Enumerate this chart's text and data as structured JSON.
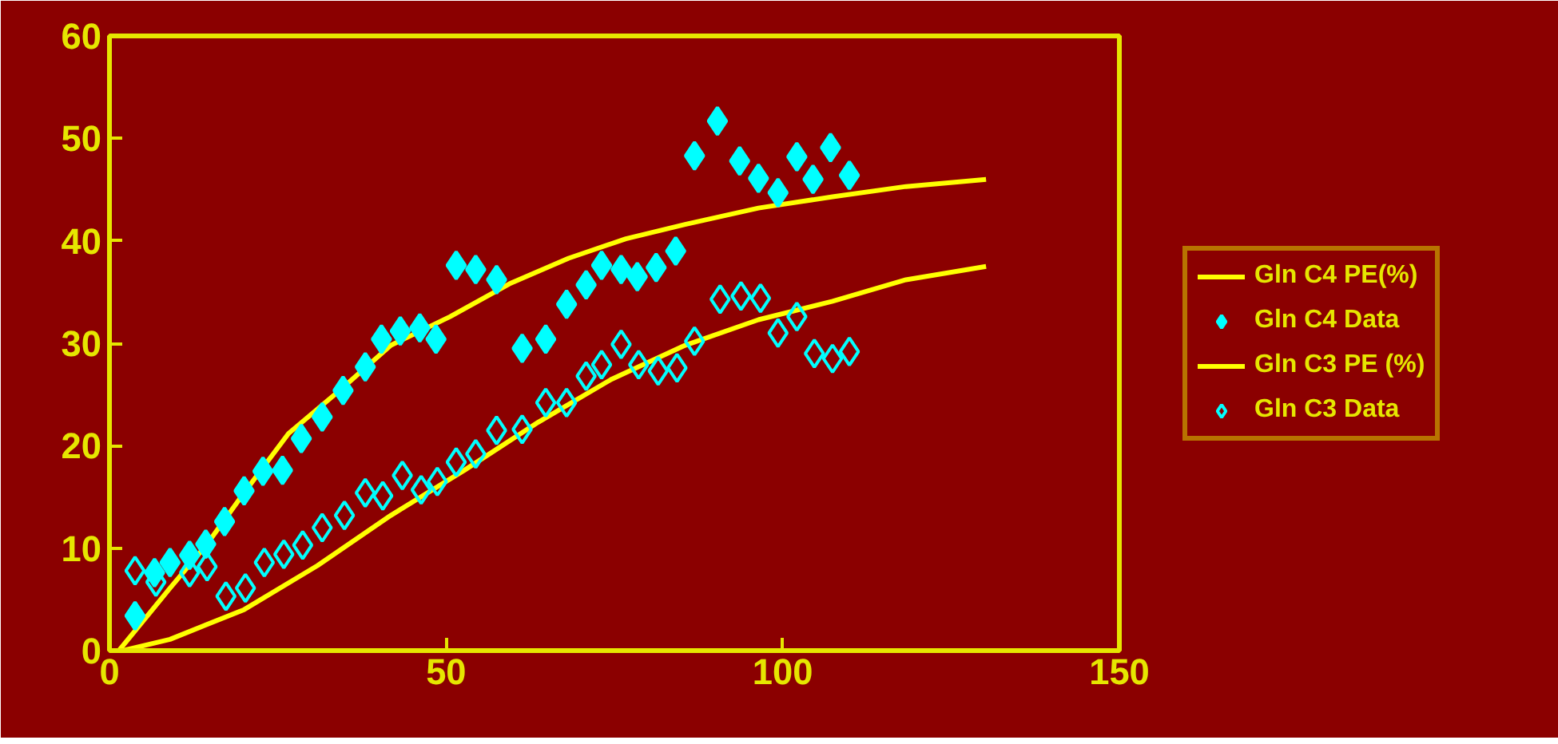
{
  "chart_data": {
    "type": "scatter",
    "xlim": [
      0,
      150
    ],
    "ylim": [
      0,
      60
    ],
    "xticks": [
      0,
      50,
      100,
      150
    ],
    "yticks": [
      0,
      10,
      20,
      30,
      40,
      50,
      60
    ],
    "grid": false,
    "legend": "right",
    "series": [
      {
        "name": "Gln C4 PE(%)",
        "type": "line",
        "color": "#ffff00",
        "marker": "none",
        "line_style": "solid",
        "x": [
          1.4,
          9,
          14.5,
          20,
          26.6,
          34.2,
          41.8,
          50.6,
          59.4,
          68.2,
          76.7,
          85.5,
          96.4,
          107.4,
          118.3,
          130.2
        ],
        "values": [
          0,
          6.1,
          10.4,
          15.4,
          21.2,
          25.4,
          29.8,
          32.6,
          35.8,
          38.3,
          40.2,
          41.6,
          43.2,
          44.3,
          45.3,
          46
        ]
      },
      {
        "name": "Gln C4 Data",
        "color": "#00ffff",
        "marker": "diamond",
        "x": [
          3.8,
          6.7,
          9,
          11.9,
          14.3,
          17.1,
          20,
          22.8,
          25.7,
          28.5,
          31.6,
          34.7,
          38,
          40.4,
          43.2,
          46.1,
          48.5,
          51.5,
          54.4,
          57.5,
          61.3,
          64.8,
          67.9,
          70.8,
          73.1,
          76,
          78.4,
          81.2,
          84.1,
          86.9,
          90.3,
          93.6,
          96.4,
          99.3,
          102.1,
          104.5,
          107.1,
          109.9
        ],
        "values": [
          3.4,
          7.6,
          8.6,
          9.3,
          10.4,
          12.6,
          15.6,
          17.5,
          17.6,
          20.7,
          22.8,
          25.4,
          27.7,
          30.4,
          31.2,
          31.5,
          30.4,
          37.6,
          37.2,
          36.2,
          29.5,
          30.4,
          33.8,
          35.7,
          37.6,
          37.2,
          36.5,
          37.4,
          39,
          48.3,
          51.7,
          47.8,
          46.1,
          44.7,
          48.2,
          46,
          49.1,
          46.4
        ]
      },
      {
        "name": "Gln C3 PE (%)",
        "type": "line",
        "color": "#ffff00",
        "marker": "none",
        "line_style": "solid",
        "x": [
          2,
          9,
          20,
          30.9,
          41.8,
          52.7,
          63.7,
          74.6,
          85.5,
          96.4,
          107.4,
          118.3,
          130.2
        ],
        "values": [
          0,
          1.1,
          4,
          8.3,
          13.2,
          17.6,
          22.3,
          26.5,
          29.8,
          32.3,
          34.1,
          36.2,
          37.5
        ]
      },
      {
        "name": "Gln C3 Data",
        "color": "#00ffff",
        "marker": "diamond",
        "x": [
          3.8,
          6.9,
          11.9,
          14.5,
          17.3,
          20.2,
          23,
          25.9,
          28.7,
          31.6,
          34.9,
          38,
          40.6,
          43.5,
          46.3,
          48.7,
          51.5,
          54.4,
          57.5,
          61.3,
          64.8,
          67.9,
          70.8,
          73.1,
          76,
          78.6,
          81.5,
          84.3,
          86.9,
          90.7,
          93.8,
          96.7,
          99.3,
          102.1,
          104.7,
          107.4,
          109.9
        ],
        "values": [
          7.8,
          6.7,
          7.6,
          8.2,
          5.3,
          6.1,
          8.6,
          9.4,
          10.3,
          12,
          13.2,
          15.4,
          15.1,
          17.1,
          15.7,
          16.5,
          18.4,
          19.2,
          21.5,
          21.6,
          24.2,
          24.2,
          26.8,
          27.9,
          29.9,
          27.9,
          27.3,
          27.6,
          30.2,
          34.3,
          34.6,
          34.4,
          31,
          32.6,
          29,
          28.5,
          29.2
        ]
      }
    ]
  }
}
